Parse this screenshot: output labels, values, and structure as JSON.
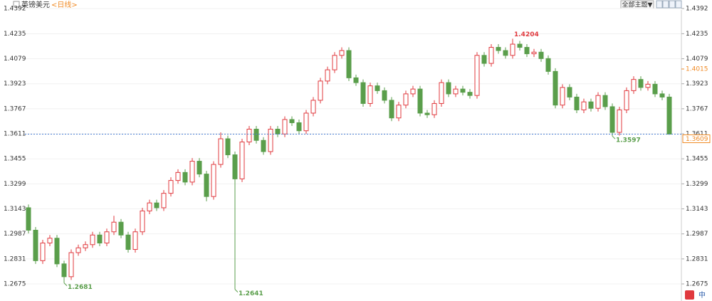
{
  "chart_data": {
    "type": "candlestick",
    "title": "英镑美元",
    "period": "<日线>",
    "up_color": "#e0393e",
    "down_color": "#5a9e4b",
    "ylim": [
      1.2675,
      1.4392
    ],
    "yticks": [
      1.4392,
      1.4235,
      1.4079,
      1.3923,
      1.3767,
      1.3611,
      1.3455,
      1.3299,
      1.3143,
      1.2987,
      1.2831,
      1.2675
    ],
    "grid": true,
    "open": [
      1.315,
      1.301,
      1.282,
      1.293,
      1.296,
      1.28,
      1.272,
      1.287,
      1.29,
      1.292,
      1.298,
      1.293,
      1.3,
      1.306,
      1.298,
      1.289,
      1.3,
      1.313,
      1.318,
      1.315,
      1.324,
      1.332,
      1.337,
      1.331,
      1.344,
      1.336,
      1.322,
      1.342,
      1.358,
      1.348,
      1.333,
      1.356,
      1.364,
      1.357,
      1.35,
      1.364,
      1.361,
      1.37,
      1.368,
      1.363,
      1.374,
      1.382,
      1.394,
      1.401,
      1.41,
      1.413,
      1.396,
      1.393,
      1.38,
      1.391,
      1.388,
      1.382,
      1.371,
      1.379,
      1.386,
      1.389,
      1.374,
      1.373,
      1.38,
      1.393,
      1.386,
      1.389,
      1.387,
      1.385,
      1.41,
      1.405,
      1.415,
      1.413,
      1.41,
      1.417,
      1.415,
      1.411,
      1.412,
      1.408,
      1.4,
      1.379,
      1.39,
      1.384,
      1.376,
      1.381,
      1.377,
      1.385,
      1.378,
      1.362,
      1.376,
      1.388,
      1.395,
      1.39,
      1.392,
      1.386,
      1.384
    ],
    "high": [
      1.317,
      1.303,
      1.295,
      1.298,
      1.298,
      1.282,
      1.289,
      1.292,
      1.294,
      1.3,
      1.3,
      1.302,
      1.31,
      1.308,
      1.3,
      1.302,
      1.315,
      1.32,
      1.32,
      1.326,
      1.334,
      1.339,
      1.339,
      1.346,
      1.346,
      1.338,
      1.344,
      1.362,
      1.36,
      1.35,
      1.358,
      1.366,
      1.366,
      1.359,
      1.366,
      1.366,
      1.372,
      1.372,
      1.37,
      1.376,
      1.384,
      1.396,
      1.403,
      1.412,
      1.415,
      1.415,
      1.398,
      1.395,
      1.393,
      1.393,
      1.39,
      1.384,
      1.381,
      1.388,
      1.391,
      1.391,
      1.376,
      1.382,
      1.395,
      1.395,
      1.391,
      1.391,
      1.389,
      1.412,
      1.412,
      1.417,
      1.417,
      1.415,
      1.4204,
      1.419,
      1.417,
      1.414,
      1.414,
      1.41,
      1.402,
      1.392,
      1.392,
      1.386,
      1.383,
      1.383,
      1.387,
      1.387,
      1.38,
      1.378,
      1.39,
      1.397,
      1.397,
      1.394,
      1.394,
      1.388,
      1.386
    ],
    "low": [
      1.299,
      1.28,
      1.28,
      1.291,
      1.278,
      1.2681,
      1.27,
      1.285,
      1.288,
      1.29,
      1.291,
      1.291,
      1.298,
      1.296,
      1.287,
      1.287,
      1.298,
      1.311,
      1.313,
      1.313,
      1.322,
      1.33,
      1.329,
      1.329,
      1.334,
      1.319,
      1.32,
      1.34,
      1.346,
      1.2641,
      1.331,
      1.354,
      1.355,
      1.348,
      1.348,
      1.359,
      1.359,
      1.366,
      1.361,
      1.361,
      1.372,
      1.38,
      1.392,
      1.399,
      1.408,
      1.394,
      1.391,
      1.378,
      1.378,
      1.386,
      1.38,
      1.369,
      1.369,
      1.377,
      1.384,
      1.372,
      1.371,
      1.371,
      1.378,
      1.384,
      1.384,
      1.385,
      1.383,
      1.383,
      1.403,
      1.403,
      1.411,
      1.408,
      1.408,
      1.413,
      1.409,
      1.409,
      1.406,
      1.398,
      1.377,
      1.377,
      1.382,
      1.374,
      1.374,
      1.375,
      1.375,
      1.376,
      1.3597,
      1.36,
      1.374,
      1.386,
      1.388,
      1.388,
      1.384,
      1.382,
      1.3605
    ],
    "close": [
      1.301,
      1.282,
      1.293,
      1.296,
      1.28,
      1.272,
      1.287,
      1.29,
      1.292,
      1.298,
      1.293,
      1.3,
      1.306,
      1.298,
      1.289,
      1.3,
      1.313,
      1.318,
      1.315,
      1.324,
      1.332,
      1.337,
      1.331,
      1.344,
      1.336,
      1.322,
      1.342,
      1.358,
      1.348,
      1.333,
      1.356,
      1.364,
      1.357,
      1.35,
      1.364,
      1.361,
      1.37,
      1.368,
      1.363,
      1.374,
      1.382,
      1.394,
      1.401,
      1.41,
      1.413,
      1.396,
      1.393,
      1.38,
      1.391,
      1.388,
      1.382,
      1.371,
      1.379,
      1.386,
      1.389,
      1.374,
      1.373,
      1.38,
      1.393,
      1.386,
      1.389,
      1.387,
      1.385,
      1.41,
      1.405,
      1.415,
      1.413,
      1.41,
      1.417,
      1.415,
      1.411,
      1.412,
      1.408,
      1.4,
      1.379,
      1.39,
      1.384,
      1.376,
      1.381,
      1.377,
      1.385,
      1.378,
      1.362,
      1.376,
      1.388,
      1.395,
      1.39,
      1.392,
      1.386,
      1.384,
      1.3609
    ],
    "annotations": [
      1.4204,
      1.2681,
      1.2641,
      1.3597
    ],
    "last_price": 1.3609,
    "price_marker": 1.4015
  },
  "toolbar": {
    "theme_button": "全部主题▼",
    "logo_text": "中"
  }
}
